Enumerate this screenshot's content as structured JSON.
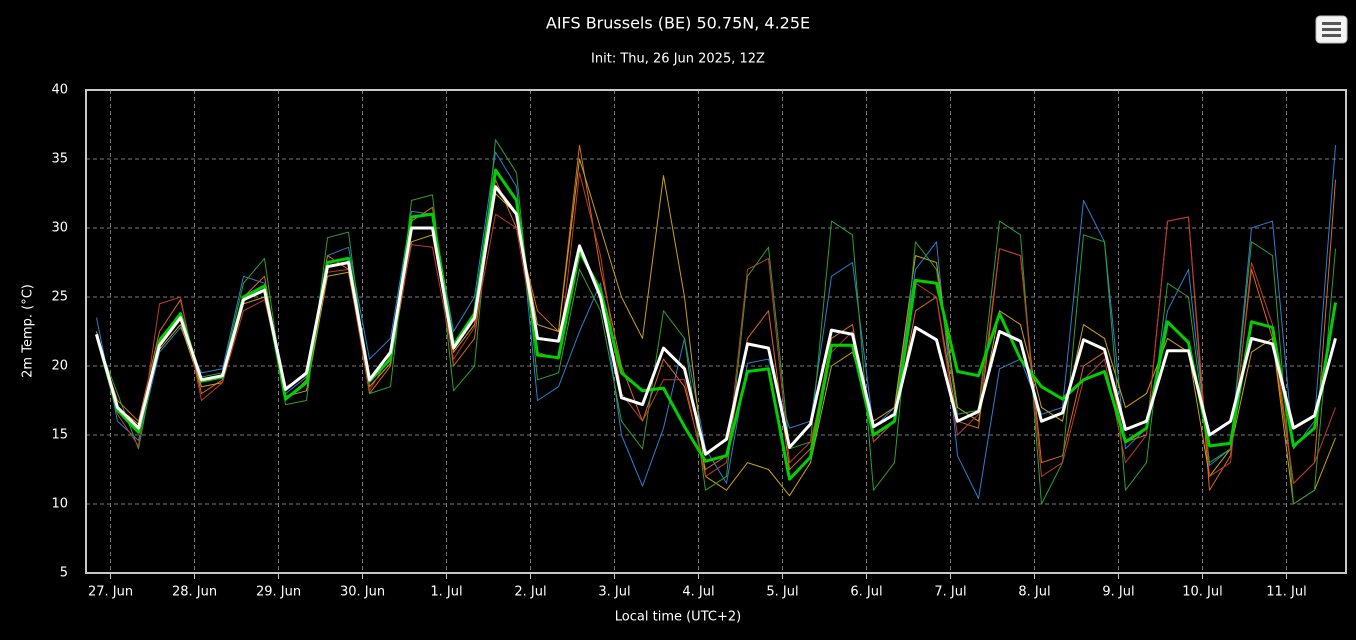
{
  "chart_data": {
    "type": "line",
    "title": "AIFS Brussels (BE) 50.75N, 4.25E",
    "subtitle": "Init: Thu, 26 Jun 2025, 12Z",
    "x_label": "Local time (UTC+2)",
    "y_label": "2m Temp. (°C)",
    "grid": true,
    "xlim": [
      -7,
      353
    ],
    "ylim": [
      5,
      40
    ],
    "yticks": [
      5,
      10,
      15,
      20,
      25,
      30,
      35,
      40
    ],
    "xticks": [
      {
        "value": 0,
        "label": "27. Jun"
      },
      {
        "value": 24,
        "label": "28. Jun"
      },
      {
        "value": 48,
        "label": "29. Jun"
      },
      {
        "value": 72,
        "label": "30. Jun"
      },
      {
        "value": 96,
        "label": "1. Jul"
      },
      {
        "value": 120,
        "label": "2. Jul"
      },
      {
        "value": 144,
        "label": "3. Jul"
      },
      {
        "value": 168,
        "label": "4. Jul"
      },
      {
        "value": 192,
        "label": "5. Jul"
      },
      {
        "value": 216,
        "label": "6. Jul"
      },
      {
        "value": 240,
        "label": "7. Jul"
      },
      {
        "value": 264,
        "label": "8. Jul"
      },
      {
        "value": 288,
        "label": "9. Jul"
      },
      {
        "value": 312,
        "label": "10. Jul"
      },
      {
        "value": 336,
        "label": "11. Jul"
      }
    ],
    "x": [
      -4,
      2,
      8,
      14,
      20,
      26,
      32,
      38,
      44,
      50,
      56,
      62,
      68,
      74,
      80,
      86,
      92,
      98,
      104,
      110,
      116,
      122,
      128,
      134,
      140,
      146,
      152,
      158,
      164,
      170,
      176,
      182,
      188,
      194,
      200,
      206,
      212,
      218,
      224,
      230,
      236,
      242,
      248,
      254,
      260,
      266,
      272,
      278,
      284,
      290,
      296,
      302,
      308,
      314,
      320,
      326,
      332,
      338,
      344,
      350
    ],
    "series": [
      {
        "color": "#2a7fd0",
        "width": 1,
        "values": [
          23.5,
          16,
          14.6,
          21,
          22.8,
          19.5,
          19.8,
          26.5,
          26,
          18,
          19.2,
          28,
          28.6,
          20.5,
          22,
          31.2,
          31,
          22.5,
          25,
          35.5,
          33,
          17.5,
          18.5,
          22.5,
          26,
          15,
          11.3,
          15.5,
          22,
          14,
          11.5,
          20.2,
          20.5,
          15.5,
          16,
          26.5,
          27.5,
          15.5,
          17,
          27,
          29,
          13.5,
          10.4,
          19.8,
          20.5,
          16.5,
          17,
          32,
          29,
          14,
          15.5,
          24,
          27,
          12.8,
          14,
          30,
          30.5,
          14,
          16,
          36
        ]
      },
      {
        "color": "#d86a1a",
        "width": 1,
        "values": [
          22,
          17.5,
          16,
          22.5,
          24.8,
          18,
          19,
          25,
          26.5,
          17.5,
          19,
          28,
          27,
          18,
          20,
          30.5,
          31.5,
          20,
          22,
          33.5,
          30,
          24,
          22.5,
          36,
          27,
          20,
          16,
          20.5,
          18.5,
          12.5,
          13.5,
          22,
          24,
          12.5,
          14,
          22,
          23,
          14.5,
          16,
          24,
          25,
          16,
          15.5,
          28.5,
          28,
          13,
          13.5,
          20,
          21,
          14.5,
          15,
          30.5,
          30.8,
          11,
          13.5,
          27,
          22,
          11.5,
          13,
          33.5
        ]
      },
      {
        "color": "#c9a010",
        "width": 1,
        "values": [
          22.5,
          17,
          15.8,
          21.2,
          23,
          18.5,
          18.8,
          24.5,
          25,
          17.8,
          18.2,
          26.5,
          26.8,
          18.5,
          20.2,
          29,
          29.5,
          21,
          23,
          32.5,
          31,
          23,
          22.5,
          35,
          30,
          25,
          22,
          33.8,
          25,
          12,
          11,
          13,
          12.5,
          10.6,
          13,
          20,
          21,
          16,
          17,
          28,
          27.5,
          17,
          16,
          24,
          23,
          17,
          16,
          23,
          22,
          17,
          18,
          22,
          21,
          12,
          14,
          21,
          22,
          10,
          11,
          14.8
        ]
      },
      {
        "color": "#2ca02c",
        "width": 1,
        "values": [
          22,
          18,
          14,
          22,
          23.8,
          19.2,
          19.5,
          26,
          27.8,
          17.2,
          17.5,
          29.3,
          29.7,
          18,
          18.5,
          32,
          32.4,
          18.2,
          20,
          36.4,
          34,
          19,
          19.5,
          27,
          24,
          16,
          14,
          24,
          22,
          11,
          12,
          26.5,
          28.6,
          14,
          14.5,
          30.5,
          29.5,
          11,
          13,
          29,
          27,
          16.5,
          16.8,
          30.5,
          29.5,
          10,
          13,
          29.5,
          29,
          11,
          13,
          26,
          25,
          13,
          14,
          29,
          28,
          10,
          11,
          28.5
        ]
      },
      {
        "color": "#c0392b",
        "width": 1,
        "values": [
          22,
          16.5,
          14.2,
          24.5,
          25,
          17.5,
          18.8,
          24,
          24.8,
          18.5,
          19.3,
          26.8,
          27,
          18.2,
          20.8,
          28.8,
          28.6,
          20.5,
          22.8,
          31,
          30,
          21,
          20.5,
          34,
          28,
          18,
          16,
          19,
          19,
          12,
          13,
          27,
          27.8,
          13,
          14.5,
          21,
          22.5,
          14.5,
          16,
          26,
          25,
          15,
          16.5,
          28.5,
          28,
          12,
          13,
          19,
          20.5,
          13,
          15,
          30.5,
          30.8,
          12,
          13,
          27.5,
          23,
          11.5,
          13,
          17
        ]
      },
      {
        "color": "#00d000",
        "width": 3,
        "values": [
          22.3,
          16.8,
          15.2,
          21.8,
          23.8,
          18.9,
          19.2,
          25,
          25.8,
          17.6,
          18.8,
          27.5,
          27.8,
          18.9,
          20.5,
          30.8,
          31,
          21.5,
          23.8,
          34.2,
          32,
          20.8,
          20.6,
          28.3,
          25.5,
          19.5,
          18.2,
          18.4,
          15.6,
          13.1,
          13.5,
          19.6,
          19.8,
          11.8,
          13.4,
          21.5,
          21.5,
          15,
          16,
          26.2,
          26,
          19.6,
          19.3,
          23.8,
          20.5,
          18.5,
          17.6,
          19,
          19.6,
          14.5,
          15.5,
          23.2,
          21.7,
          14.2,
          14.4,
          23.2,
          22.8,
          14.2,
          15.5,
          24.6
        ]
      },
      {
        "color": "#ffffff",
        "width": 3,
        "values": [
          22.3,
          17,
          15.5,
          21.5,
          23.5,
          19,
          19.3,
          24.8,
          25.5,
          18.3,
          19.5,
          27.2,
          27.5,
          19,
          21,
          30,
          30,
          21.3,
          23.5,
          33,
          31,
          22,
          21.8,
          28.7,
          25,
          17.7,
          17.2,
          21.3,
          19.8,
          13.6,
          14.7,
          21.6,
          21.3,
          14.1,
          15.8,
          22.6,
          22.3,
          15.6,
          16.5,
          22.8,
          21.9,
          16,
          16.7,
          22.5,
          21.8,
          16,
          16.6,
          21.9,
          21.2,
          15.4,
          16,
          21.1,
          21.1,
          15,
          16,
          22,
          21.6,
          15.5,
          16.4,
          22
        ]
      }
    ]
  }
}
